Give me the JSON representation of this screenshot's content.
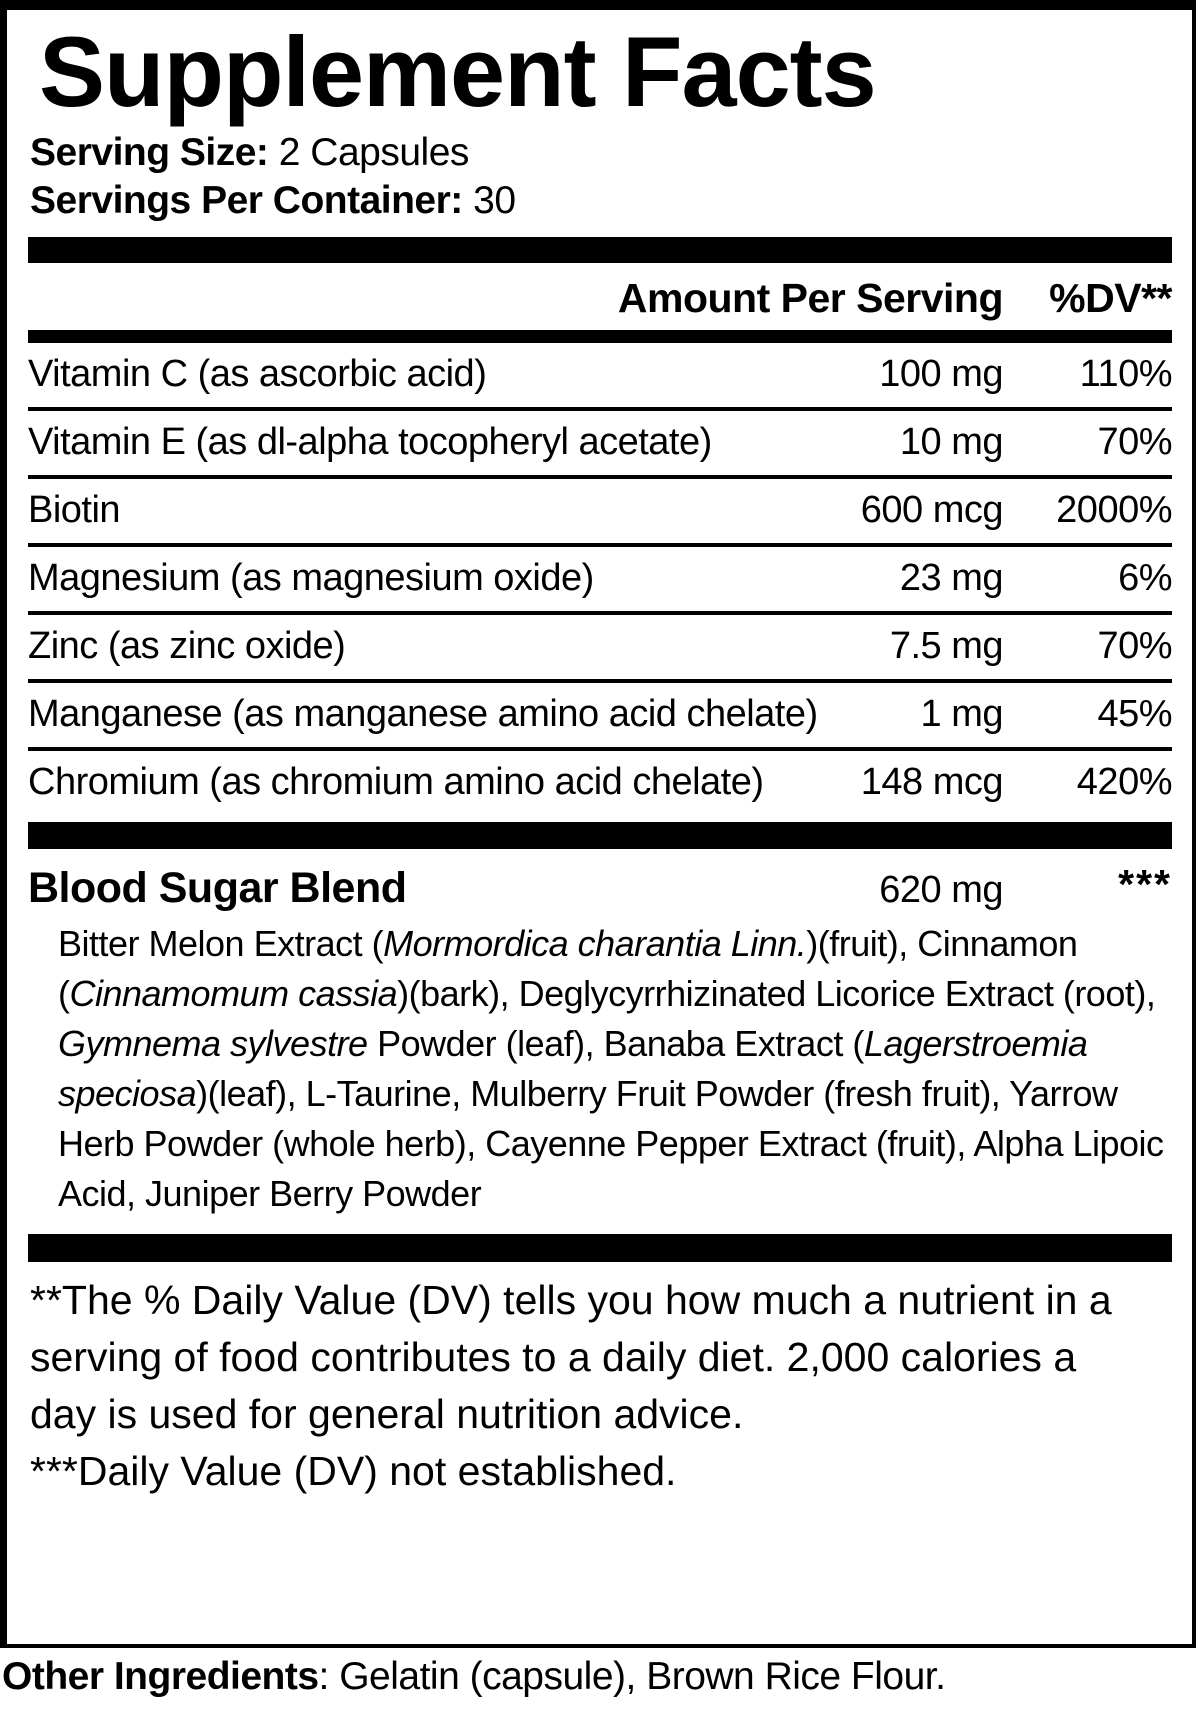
{
  "title": "Supplement Facts",
  "serving": {
    "size_label": "Serving Size:",
    "size_value": "2 Capsules",
    "container_label": "Servings Per Container:",
    "container_value": "30"
  },
  "table": {
    "amount_header": "Amount Per Serving",
    "dv_header": "%DV**",
    "rows": [
      {
        "name": "Vitamin C (as ascorbic acid)",
        "amount": "100 mg",
        "dv": "110%"
      },
      {
        "name": "Vitamin E (as dl-alpha tocopheryl acetate)",
        "amount": "10 mg",
        "dv": "70%"
      },
      {
        "name": "Biotin",
        "amount": "600 mcg",
        "dv": "2000%"
      },
      {
        "name": "Magnesium (as magnesium oxide)",
        "amount": "23 mg",
        "dv": "6%"
      },
      {
        "name": "Zinc (as zinc oxide)",
        "amount": "7.5 mg",
        "dv": "70%"
      },
      {
        "name": "Manganese (as manganese amino acid chelate)",
        "amount": "1 mg",
        "dv": "45%"
      },
      {
        "name": "Chromium (as chromium amino acid chelate)",
        "amount": "148 mcg",
        "dv": "420%"
      }
    ]
  },
  "blend": {
    "name": "Blood Sugar Blend",
    "amount": "620 mg",
    "dv": "***",
    "ingredients_segments": [
      {
        "text": "Bitter Melon Extract (",
        "italic": false
      },
      {
        "text": "Mormordica charantia Linn.",
        "italic": true
      },
      {
        "text": ")(fruit), Cinnamon (",
        "italic": false
      },
      {
        "text": "Cinnamomum cassia",
        "italic": true
      },
      {
        "text": ")(bark), Deglycyrrhizinated Licorice Extract (root), ",
        "italic": false
      },
      {
        "text": "Gymnema sylvestre",
        "italic": true
      },
      {
        "text": " Powder (leaf), Banaba Extract (",
        "italic": false
      },
      {
        "text": "Lagerstroemia speciosa",
        "italic": true
      },
      {
        "text": ")(leaf), L-Taurine, Mulberry Fruit Powder (fresh fruit), Yarrow Herb Powder (whole herb), Cayenne Pepper Extract (fruit), Alpha Lipoic Acid, Juniper Berry Powder",
        "italic": false
      }
    ]
  },
  "footnotes": {
    "dv_note": "**The % Daily Value (DV) tells you how much a nutrient in a serving of food contributes to a daily diet. 2,000 calories a day is used for general nutrition advice.",
    "not_established": "***Daily Value (DV) not established."
  },
  "other_ingredients": {
    "label": "Other Ingredients",
    "value": ": Gelatin (capsule), Brown Rice Flour."
  },
  "colors": {
    "ink": "#000000",
    "background": "#ffffff"
  }
}
